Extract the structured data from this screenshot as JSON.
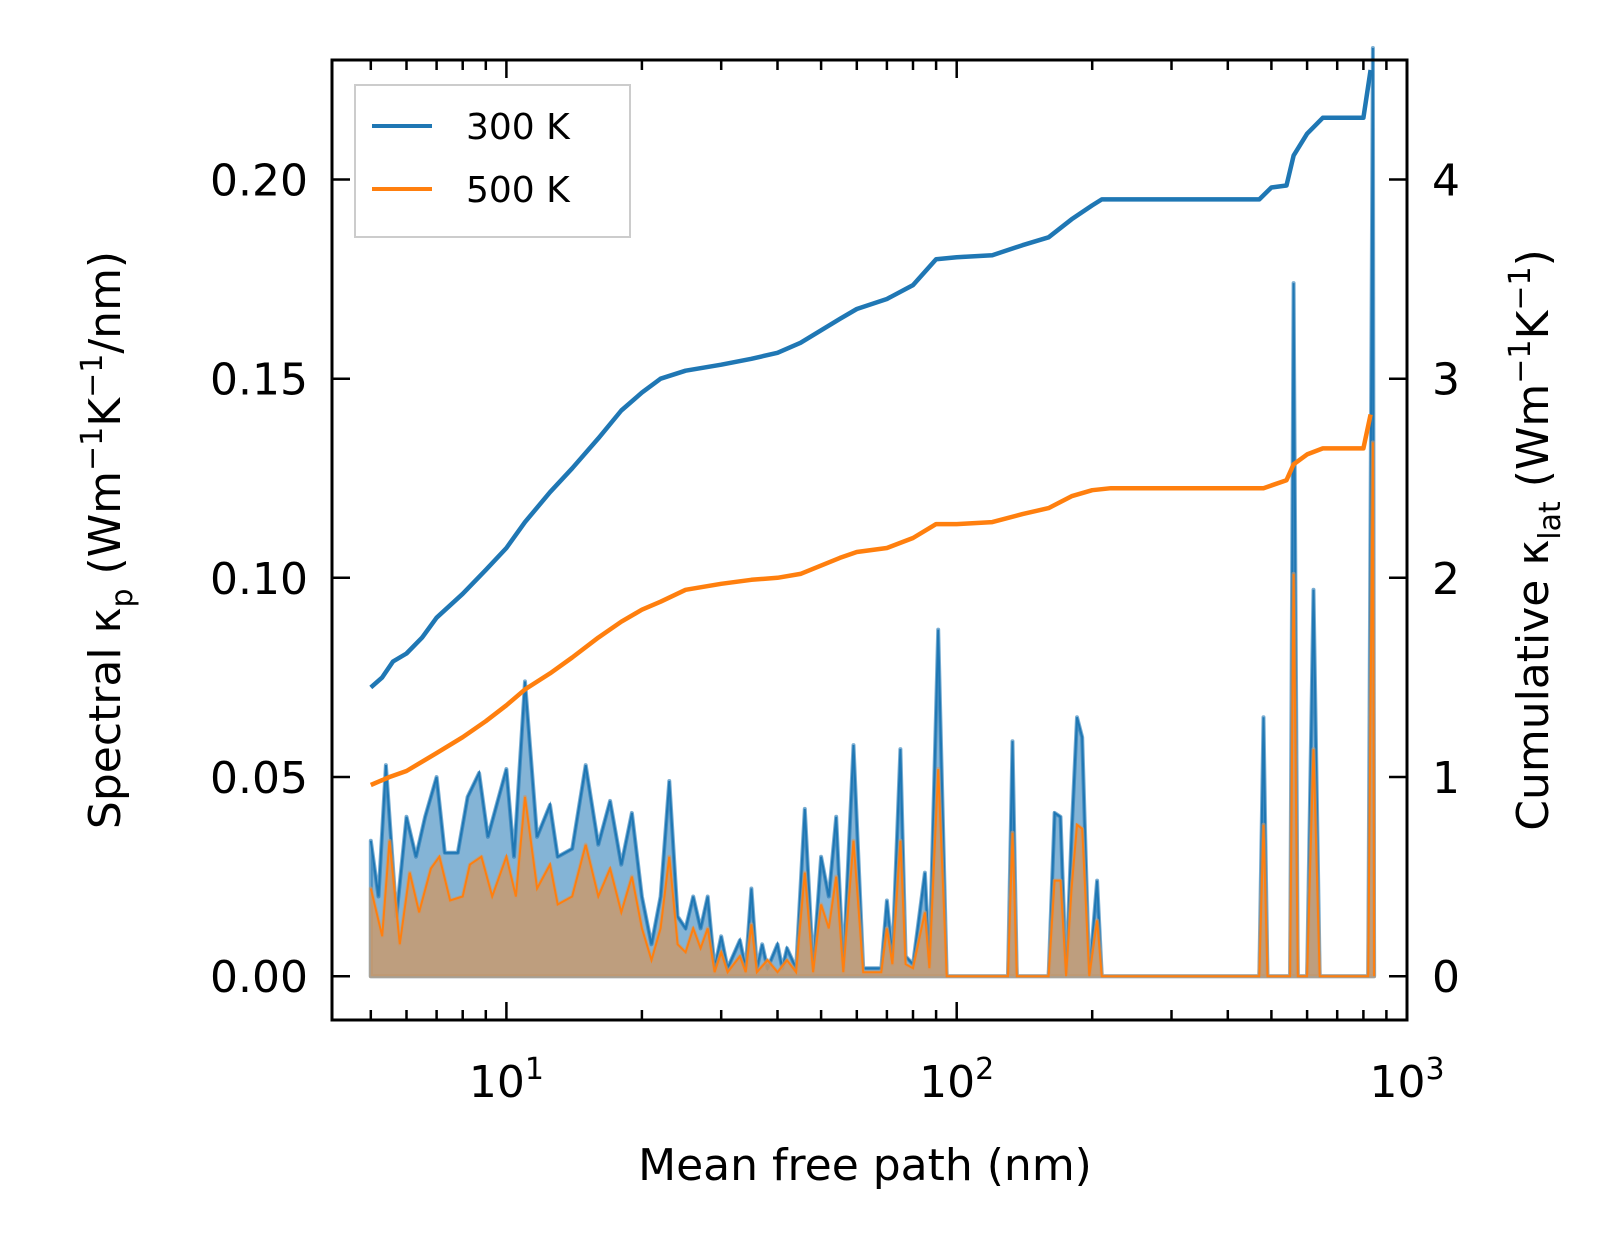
{
  "chart_data": {
    "type": "line",
    "xlabel": "Mean free path (nm)",
    "xscale": "log",
    "xlim": [
      4.1,
      1000
    ],
    "x_ticks": [
      10,
      100,
      1000
    ],
    "x_tick_labels": [
      {
        "base": "10",
        "exp": "1"
      },
      {
        "base": "10",
        "exp": "2"
      },
      {
        "base": "10",
        "exp": "3"
      }
    ],
    "ylabel_left": {
      "pre": "Spectral κ",
      "sub": "p",
      "post": " (Wm",
      "sup1": "−1",
      "mid": "K",
      "sup2": "−1",
      "end": "/nm)"
    },
    "ylim_left": [
      -0.011,
      0.23
    ],
    "yticks_left": [
      "0.00",
      "0.05",
      "0.10",
      "0.15",
      "0.20"
    ],
    "ylabel_right": {
      "pre": "Cumulative κ",
      "sub": "lat",
      "post": " (Wm",
      "sup1": "−1",
      "mid": "K",
      "sup2": "−1",
      "end": ")"
    },
    "ylim_right": [
      -0.22,
      4.6
    ],
    "yticks_right": [
      "0",
      "1",
      "2",
      "3",
      "4"
    ],
    "legend": {
      "position": "top-left",
      "entries": [
        "300 K",
        "500 K"
      ]
    },
    "colors": {
      "300 K": "#1f77b4",
      "500 K": "#ff7f0e",
      "fill_300": "#1f77b4",
      "fill_500": "#c89a6e"
    },
    "cumulative": [
      {
        "name": "300 K",
        "axis": "right",
        "points": [
          [
            5.0,
            1.45
          ],
          [
            5.3,
            1.5
          ],
          [
            5.6,
            1.58
          ],
          [
            6.0,
            1.62
          ],
          [
            6.5,
            1.7
          ],
          [
            7.0,
            1.8
          ],
          [
            8.0,
            1.92
          ],
          [
            9.0,
            2.04
          ],
          [
            10.0,
            2.15
          ],
          [
            11.0,
            2.28
          ],
          [
            12.5,
            2.43
          ],
          [
            14.0,
            2.55
          ],
          [
            16.0,
            2.7
          ],
          [
            18.0,
            2.84
          ],
          [
            20.0,
            2.93
          ],
          [
            22.0,
            3.0
          ],
          [
            25.0,
            3.04
          ],
          [
            30.0,
            3.07
          ],
          [
            35.0,
            3.1
          ],
          [
            40.0,
            3.13
          ],
          [
            45.0,
            3.18
          ],
          [
            55.0,
            3.3
          ],
          [
            60.0,
            3.35
          ],
          [
            70.0,
            3.4
          ],
          [
            80.0,
            3.47
          ],
          [
            90.0,
            3.6
          ],
          [
            100.0,
            3.61
          ],
          [
            120.0,
            3.62
          ],
          [
            140.0,
            3.67
          ],
          [
            160.0,
            3.71
          ],
          [
            180.0,
            3.8
          ],
          [
            200.0,
            3.87
          ],
          [
            210.0,
            3.9
          ],
          [
            300.0,
            3.9
          ],
          [
            400.0,
            3.9
          ],
          [
            470.0,
            3.9
          ],
          [
            500.0,
            3.96
          ],
          [
            540.0,
            3.97
          ],
          [
            560.0,
            4.12
          ],
          [
            600.0,
            4.23
          ],
          [
            650.0,
            4.31
          ],
          [
            700.0,
            4.31
          ],
          [
            800.0,
            4.31
          ],
          [
            830.0,
            4.55
          ]
        ]
      },
      {
        "name": "500 K",
        "axis": "right",
        "points": [
          [
            5.0,
            0.96
          ],
          [
            5.5,
            1.0
          ],
          [
            6.0,
            1.03
          ],
          [
            7.0,
            1.12
          ],
          [
            8.0,
            1.2
          ],
          [
            9.0,
            1.28
          ],
          [
            10.0,
            1.36
          ],
          [
            11.0,
            1.44
          ],
          [
            12.5,
            1.52
          ],
          [
            14.0,
            1.6
          ],
          [
            16.0,
            1.7
          ],
          [
            18.0,
            1.78
          ],
          [
            20.0,
            1.84
          ],
          [
            22.0,
            1.88
          ],
          [
            25.0,
            1.94
          ],
          [
            30.0,
            1.97
          ],
          [
            35.0,
            1.99
          ],
          [
            40.0,
            2.0
          ],
          [
            45.0,
            2.02
          ],
          [
            55.0,
            2.1
          ],
          [
            60.0,
            2.13
          ],
          [
            70.0,
            2.15
          ],
          [
            80.0,
            2.2
          ],
          [
            90.0,
            2.27
          ],
          [
            100.0,
            2.27
          ],
          [
            120.0,
            2.28
          ],
          [
            140.0,
            2.32
          ],
          [
            160.0,
            2.35
          ],
          [
            180.0,
            2.41
          ],
          [
            200.0,
            2.44
          ],
          [
            220.0,
            2.45
          ],
          [
            400.0,
            2.45
          ],
          [
            480.0,
            2.45
          ],
          [
            540.0,
            2.49
          ],
          [
            560.0,
            2.57
          ],
          [
            600.0,
            2.62
          ],
          [
            650.0,
            2.65
          ],
          [
            800.0,
            2.65
          ],
          [
            830.0,
            2.82
          ]
        ]
      }
    ],
    "spectral": [
      {
        "name": "300 K",
        "axis": "left",
        "points": [
          [
            5.0,
            0.034
          ],
          [
            5.2,
            0.02
          ],
          [
            5.4,
            0.053
          ],
          [
            5.7,
            0.015
          ],
          [
            6.0,
            0.04
          ],
          [
            6.3,
            0.03
          ],
          [
            6.6,
            0.04
          ],
          [
            7.0,
            0.05
          ],
          [
            7.3,
            0.031
          ],
          [
            7.8,
            0.031
          ],
          [
            8.2,
            0.045
          ],
          [
            8.7,
            0.051
          ],
          [
            9.1,
            0.035
          ],
          [
            10.0,
            0.052
          ],
          [
            10.4,
            0.03
          ],
          [
            11.0,
            0.074
          ],
          [
            11.7,
            0.035
          ],
          [
            12.5,
            0.043
          ],
          [
            13.0,
            0.03
          ],
          [
            14.0,
            0.032
          ],
          [
            15.0,
            0.053
          ],
          [
            16.0,
            0.033
          ],
          [
            17.0,
            0.044
          ],
          [
            18.0,
            0.028
          ],
          [
            19.0,
            0.041
          ],
          [
            20.0,
            0.02
          ],
          [
            21.0,
            0.008
          ],
          [
            22.0,
            0.02
          ],
          [
            23.0,
            0.049
          ],
          [
            24.0,
            0.015
          ],
          [
            25.0,
            0.012
          ],
          [
            26.0,
            0.02
          ],
          [
            27.0,
            0.012
          ],
          [
            28.0,
            0.02
          ],
          [
            29.0,
            0.002
          ],
          [
            30.0,
            0.01
          ],
          [
            31.0,
            0.002
          ],
          [
            33.0,
            0.009
          ],
          [
            34.0,
            0.002
          ],
          [
            35.0,
            0.022
          ],
          [
            36.0,
            0.002
          ],
          [
            37.0,
            0.008
          ],
          [
            38.0,
            0.002
          ],
          [
            40.0,
            0.008
          ],
          [
            41.0,
            0.002
          ],
          [
            42.0,
            0.007
          ],
          [
            44.0,
            0.002
          ],
          [
            46.0,
            0.042
          ],
          [
            48.0,
            0.002
          ],
          [
            50.0,
            0.03
          ],
          [
            52.0,
            0.02
          ],
          [
            54.0,
            0.04
          ],
          [
            56.0,
            0.002
          ],
          [
            59.0,
            0.058
          ],
          [
            62.0,
            0.002
          ],
          [
            68.0,
            0.002
          ],
          [
            70.0,
            0.019
          ],
          [
            72.0,
            0.005
          ],
          [
            75.0,
            0.057
          ],
          [
            77.0,
            0.005
          ],
          [
            80.0,
            0.003
          ],
          [
            85.0,
            0.026
          ],
          [
            87.0,
            0.003
          ],
          [
            91.0,
            0.087
          ],
          [
            95.0,
            0.0
          ],
          [
            130.0,
            0.0
          ],
          [
            133.0,
            0.059
          ],
          [
            136.0,
            0.0
          ],
          [
            160.0,
            0.0
          ],
          [
            165.0,
            0.041
          ],
          [
            170.0,
            0.04
          ],
          [
            175.0,
            0.0
          ],
          [
            180.0,
            0.036
          ],
          [
            185.0,
            0.065
          ],
          [
            190.0,
            0.06
          ],
          [
            197.0,
            0.0
          ],
          [
            205.0,
            0.024
          ],
          [
            210.0,
            0.0
          ],
          [
            470.0,
            0.0
          ],
          [
            480.0,
            0.065
          ],
          [
            490.0,
            0.0
          ],
          [
            550.0,
            0.0
          ],
          [
            560.0,
            0.174
          ],
          [
            572.0,
            0.0
          ],
          [
            600.0,
            0.0
          ],
          [
            620.0,
            0.097
          ],
          [
            640.0,
            0.0
          ],
          [
            820.0,
            0.0
          ],
          [
            840.0,
            0.233
          ],
          [
            845.0,
            0.0
          ]
        ]
      },
      {
        "name": "500 K",
        "axis": "left",
        "points": [
          [
            5.0,
            0.022
          ],
          [
            5.3,
            0.01
          ],
          [
            5.5,
            0.034
          ],
          [
            5.8,
            0.008
          ],
          [
            6.1,
            0.026
          ],
          [
            6.4,
            0.016
          ],
          [
            6.8,
            0.027
          ],
          [
            7.1,
            0.03
          ],
          [
            7.5,
            0.019
          ],
          [
            8.0,
            0.02
          ],
          [
            8.3,
            0.028
          ],
          [
            8.8,
            0.03
          ],
          [
            9.3,
            0.02
          ],
          [
            10.0,
            0.03
          ],
          [
            10.5,
            0.02
          ],
          [
            11.0,
            0.045
          ],
          [
            11.7,
            0.022
          ],
          [
            12.5,
            0.028
          ],
          [
            13.0,
            0.018
          ],
          [
            14.0,
            0.02
          ],
          [
            15.0,
            0.033
          ],
          [
            16.0,
            0.02
          ],
          [
            17.0,
            0.027
          ],
          [
            18.0,
            0.016
          ],
          [
            19.0,
            0.025
          ],
          [
            20.0,
            0.012
          ],
          [
            21.0,
            0.004
          ],
          [
            22.0,
            0.012
          ],
          [
            23.0,
            0.03
          ],
          [
            24.0,
            0.008
          ],
          [
            25.0,
            0.006
          ],
          [
            26.0,
            0.012
          ],
          [
            27.0,
            0.007
          ],
          [
            28.0,
            0.012
          ],
          [
            29.0,
            0.001
          ],
          [
            30.0,
            0.006
          ],
          [
            31.0,
            0.001
          ],
          [
            33.0,
            0.005
          ],
          [
            34.0,
            0.001
          ],
          [
            35.0,
            0.013
          ],
          [
            36.0,
            0.001
          ],
          [
            38.0,
            0.004
          ],
          [
            40.0,
            0.001
          ],
          [
            42.0,
            0.004
          ],
          [
            44.0,
            0.001
          ],
          [
            46.0,
            0.026
          ],
          [
            48.0,
            0.001
          ],
          [
            50.0,
            0.018
          ],
          [
            52.0,
            0.012
          ],
          [
            54.0,
            0.025
          ],
          [
            56.0,
            0.001
          ],
          [
            59.0,
            0.034
          ],
          [
            62.0,
            0.001
          ],
          [
            68.0,
            0.001
          ],
          [
            70.0,
            0.012
          ],
          [
            72.0,
            0.003
          ],
          [
            75.0,
            0.034
          ],
          [
            77.0,
            0.003
          ],
          [
            80.0,
            0.002
          ],
          [
            85.0,
            0.016
          ],
          [
            87.0,
            0.002
          ],
          [
            91.0,
            0.052
          ],
          [
            95.0,
            0.0
          ],
          [
            130.0,
            0.0
          ],
          [
            133.0,
            0.036
          ],
          [
            136.0,
            0.0
          ],
          [
            160.0,
            0.0
          ],
          [
            165.0,
            0.024
          ],
          [
            170.0,
            0.024
          ],
          [
            175.0,
            0.0
          ],
          [
            180.0,
            0.022
          ],
          [
            185.0,
            0.038
          ],
          [
            190.0,
            0.037
          ],
          [
            197.0,
            0.0
          ],
          [
            205.0,
            0.014
          ],
          [
            210.0,
            0.0
          ],
          [
            470.0,
            0.0
          ],
          [
            480.0,
            0.038
          ],
          [
            490.0,
            0.0
          ],
          [
            550.0,
            0.0
          ],
          [
            560.0,
            0.101
          ],
          [
            572.0,
            0.0
          ],
          [
            600.0,
            0.0
          ],
          [
            620.0,
            0.057
          ],
          [
            640.0,
            0.0
          ],
          [
            820.0,
            0.0
          ],
          [
            840.0,
            0.134
          ],
          [
            845.0,
            0.0
          ]
        ]
      }
    ]
  }
}
